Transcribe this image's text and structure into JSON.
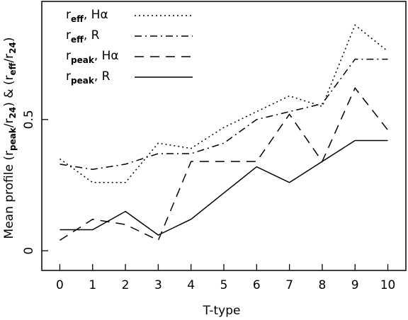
{
  "chart_data": {
    "type": "line",
    "xlabel": "T-type",
    "ylabel_parts": {
      "prefix": "Mean profile (r",
      "sub1": "peak",
      "mid1": "/r",
      "sub2": "24",
      "mid2": ") & (r",
      "sub3": "eff",
      "mid3": "/r",
      "sub4": "24",
      "suffix": ")"
    },
    "ylabel": "Mean profile (r_peak/r_24) & (r_eff/r_24)",
    "x_ticks": [
      0,
      1,
      2,
      3,
      4,
      5,
      6,
      7,
      8,
      9,
      10
    ],
    "y_ticks": [
      0,
      0.5
    ],
    "y_tick_labels": [
      "0",
      "0.5"
    ],
    "xlim": [
      -0.55,
      10.55
    ],
    "ylim": [
      -0.075,
      0.95
    ],
    "grid": false,
    "legend_position": "top-left",
    "series": [
      {
        "key": "reff_ha",
        "name_parts": {
          "r": "r",
          "sub": "eff",
          "suffix": ", Hα"
        },
        "dash": "dotted",
        "x": [
          0,
          1,
          2,
          3,
          4,
          5,
          6,
          7,
          8,
          9,
          10
        ],
        "y": [
          0.35,
          0.26,
          0.26,
          0.41,
          0.39,
          0.47,
          0.53,
          0.59,
          0.55,
          0.86,
          0.76
        ]
      },
      {
        "key": "reff_r",
        "name_parts": {
          "r": "r",
          "sub": "eff",
          "suffix": ", R"
        },
        "dash": "dashdot",
        "x": [
          0,
          1,
          2,
          3,
          4,
          5,
          6,
          7,
          8,
          9,
          10
        ],
        "y": [
          0.33,
          0.31,
          0.33,
          0.37,
          0.37,
          0.41,
          0.5,
          0.53,
          0.56,
          0.73,
          0.73
        ]
      },
      {
        "key": "rpeak_ha",
        "name_parts": {
          "r": "r",
          "sub": "peak",
          "suffix": ", Hα"
        },
        "dash": "dashed",
        "x": [
          0,
          1,
          2,
          3,
          4,
          5,
          6,
          7,
          8,
          9,
          10
        ],
        "y": [
          0.04,
          0.12,
          0.1,
          0.04,
          0.34,
          0.34,
          0.34,
          0.52,
          0.34,
          0.62,
          0.46
        ]
      },
      {
        "key": "rpeak_r",
        "name_parts": {
          "r": "r",
          "sub": "peak",
          "suffix": ", R"
        },
        "dash": "solid",
        "x": [
          0,
          1,
          2,
          3,
          4,
          5,
          6,
          7,
          8,
          9,
          10
        ],
        "y": [
          0.08,
          0.08,
          0.15,
          0.06,
          0.12,
          0.22,
          0.32,
          0.26,
          0.34,
          0.42,
          0.42
        ]
      }
    ]
  }
}
